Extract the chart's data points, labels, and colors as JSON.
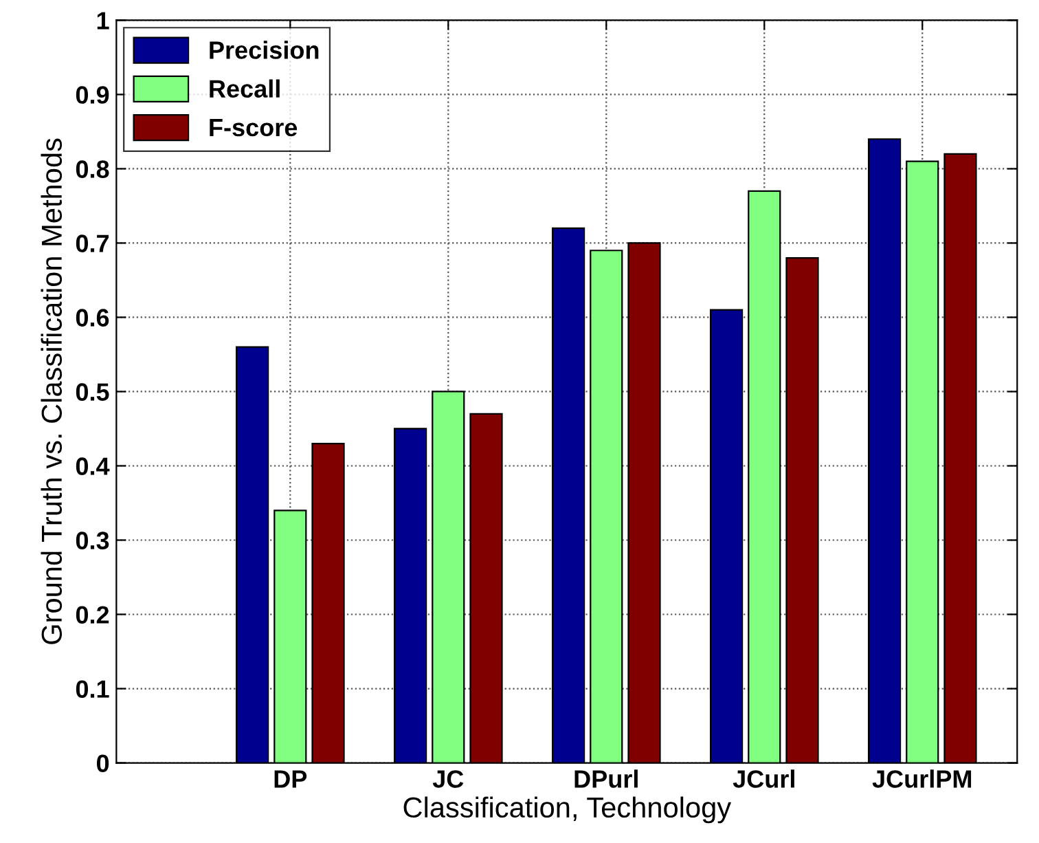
{
  "chart_data": {
    "type": "bar",
    "xlabel": "Classification, Technology",
    "ylabel": "Ground Truth vs. Classification Methods",
    "categories": [
      "DP",
      "JC",
      "DPurl",
      "JCurl",
      "JCurlPM"
    ],
    "series": [
      {
        "name": "Precision",
        "color": "#00008f",
        "values": [
          0.56,
          0.45,
          0.72,
          0.61,
          0.84
        ]
      },
      {
        "name": "Recall",
        "color": "#80ff80",
        "values": [
          0.34,
          0.5,
          0.69,
          0.77,
          0.81
        ]
      },
      {
        "name": "F-score",
        "color": "#800000",
        "values": [
          0.43,
          0.47,
          0.7,
          0.68,
          0.82
        ]
      }
    ],
    "ylim": [
      0,
      1
    ],
    "yticks": [
      0,
      0.1,
      0.2,
      0.3,
      0.4,
      0.5,
      0.6,
      0.7,
      0.8,
      0.9,
      1
    ],
    "grid": true,
    "legend": "top left"
  }
}
